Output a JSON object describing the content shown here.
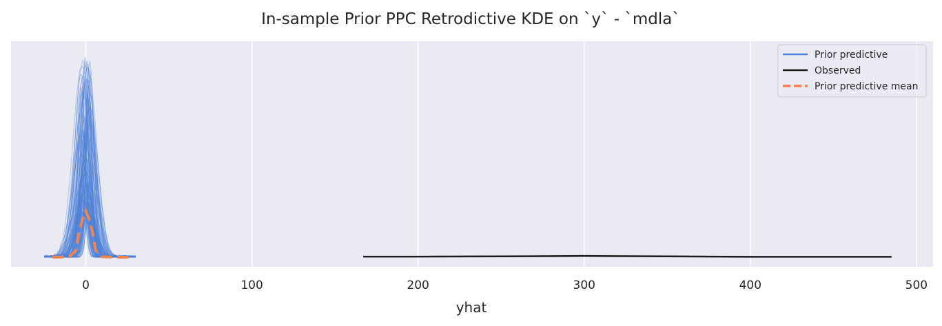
{
  "chart_data": {
    "type": "line",
    "title": "In-sample Prior PPC Retrodictive KDE on `y` - `mdla`",
    "xlabel": "yhat",
    "ylabel": "",
    "xlim": [
      -45,
      510
    ],
    "ylim": [
      0,
      1.0
    ],
    "x_ticks": [
      0,
      100,
      200,
      300,
      400,
      500
    ],
    "y_ticks_visible": false,
    "grid": true,
    "legend_position": "top-right",
    "colors": {
      "background": "#eaeaf2",
      "grid": "#ffffff",
      "prior_predictive": "#4c80d8",
      "observed": "#1a1a1a",
      "prior_predictive_mean": "#f0834f"
    },
    "legend": [
      {
        "name": "Prior predictive",
        "style": "solid",
        "color": "#4c80d8"
      },
      {
        "name": "Observed",
        "style": "solid",
        "color": "#1a1a1a"
      },
      {
        "name": "Prior predictive mean",
        "style": "dashed",
        "color": "#f0834f"
      }
    ],
    "series": [
      {
        "name": "Observed",
        "x": [
          167,
          200,
          250,
          300,
          350,
          400,
          450,
          485
        ],
        "y": [
          0.003,
          0.003,
          0.004,
          0.006,
          0.004,
          0.002,
          0.002,
          0.002
        ]
      },
      {
        "name": "Prior predictive mean",
        "x": [
          -20,
          -10,
          -6,
          -4,
          -2,
          0,
          2,
          4,
          6,
          10,
          20,
          28
        ],
        "y": [
          0.0,
          0.002,
          0.03,
          0.12,
          0.18,
          0.22,
          0.18,
          0.12,
          0.03,
          0.002,
          0.0,
          0.0
        ]
      }
    ],
    "prior_predictive_samples": {
      "count": 140,
      "center_range": [
        -3,
        3
      ],
      "sd_range": [
        1.5,
        6
      ],
      "peak_range": [
        0.2,
        0.95
      ],
      "support": [
        -25,
        30
      ]
    }
  }
}
